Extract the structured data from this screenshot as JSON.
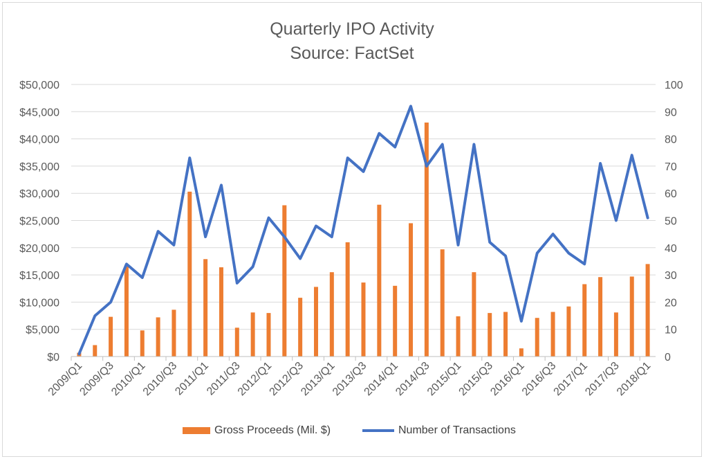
{
  "chart_data": {
    "type": "bar",
    "title": "Quarterly IPO Activity",
    "subtitle": "Source: FactSet",
    "categories": [
      "2009/Q1",
      "2009/Q2",
      "2009/Q3",
      "2009/Q4",
      "2010/Q1",
      "2010/Q2",
      "2010/Q3",
      "2010/Q4",
      "2011/Q1",
      "2011/Q2",
      "2011/Q3",
      "2011/Q4",
      "2012/Q1",
      "2012/Q2",
      "2012/Q3",
      "2012/Q4",
      "2013/Q1",
      "2013/Q2",
      "2013/Q3",
      "2013/Q4",
      "2014/Q1",
      "2014/Q2",
      "2014/Q3",
      "2014/Q4",
      "2015/Q1",
      "2015/Q2",
      "2015/Q3",
      "2015/Q4",
      "2016/Q1",
      "2016/Q2",
      "2016/Q3",
      "2016/Q4",
      "2017/Q1",
      "2017/Q2",
      "2017/Q3",
      "2017/Q4",
      "2018/Q1"
    ],
    "x_tick_labels": [
      "2009/Q1",
      "2009/Q3",
      "2010/Q1",
      "2010/Q3",
      "2011/Q1",
      "2011/Q3",
      "2012/Q1",
      "2012/Q3",
      "2013/Q1",
      "2013/Q3",
      "2014/Q1",
      "2014/Q3",
      "2015/Q1",
      "2015/Q3",
      "2016/Q1",
      "2016/Q3",
      "2017/Q1",
      "2017/Q3",
      "2018/Q1"
    ],
    "series": [
      {
        "name": "Gross Proceeds (Mil. $)",
        "type": "bar",
        "axis": "left",
        "color": "#ED7D31",
        "values": [
          700,
          2100,
          7300,
          16800,
          4800,
          7200,
          8600,
          30300,
          17900,
          16400,
          5300,
          8100,
          8000,
          27800,
          10800,
          12800,
          15500,
          21000,
          13600,
          27900,
          13000,
          24500,
          43000,
          19700,
          7400,
          15500,
          8000,
          8200,
          1500,
          7100,
          8200,
          9200,
          13300,
          14600,
          8100,
          14700,
          17000
        ]
      },
      {
        "name": "Number of Transactions",
        "type": "line",
        "axis": "right",
        "color": "#4472C4",
        "values": [
          1,
          15,
          20,
          34,
          29,
          46,
          41,
          73,
          44,
          63,
          27,
          33,
          51,
          44,
          36,
          48,
          44,
          73,
          68,
          82,
          77,
          92,
          70,
          78,
          41,
          78,
          42,
          37,
          13,
          38,
          45,
          38,
          34,
          71,
          50,
          74,
          51
        ]
      }
    ],
    "y_left": {
      "ylim": [
        0,
        50000
      ],
      "ticks": [
        "$0",
        "$5,000",
        "$10,000",
        "$15,000",
        "$20,000",
        "$25,000",
        "$30,000",
        "$35,000",
        "$40,000",
        "$45,000",
        "$50,000"
      ]
    },
    "y_right": {
      "ylim": [
        0,
        100
      ],
      "ticks": [
        "0",
        "10",
        "20",
        "30",
        "40",
        "50",
        "60",
        "70",
        "80",
        "90",
        "100"
      ]
    },
    "grid": true,
    "legend_position": "bottom"
  }
}
